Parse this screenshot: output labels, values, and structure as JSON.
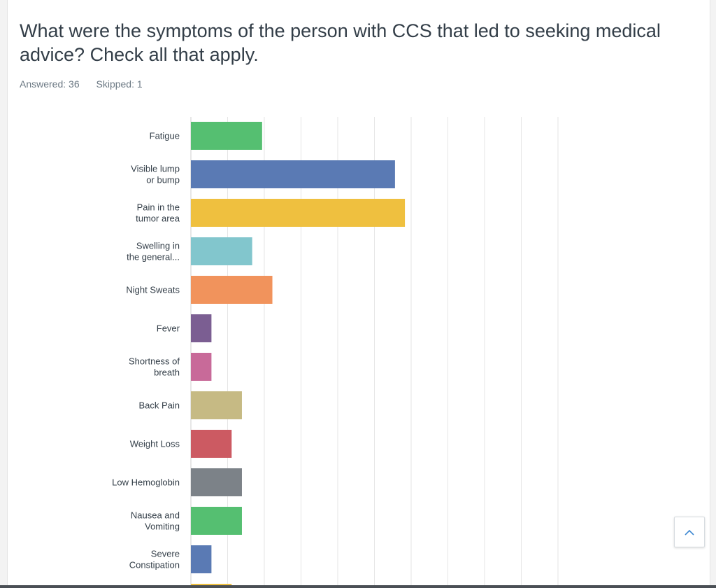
{
  "question": {
    "title": "What were the symptoms of the person with CCS that led to seeking medical advice? Check all that apply.",
    "answered": "Answered: 36",
    "skipped": "Skipped: 1"
  },
  "scroll_top": {
    "icon": "chevron-up-icon"
  },
  "colors": {
    "green": "#55bf71",
    "blue": "#5a7ab4",
    "yellow": "#efc03f",
    "teal": "#82c6cd",
    "orange": "#f1935c",
    "purple": "#7b5e92",
    "pink": "#c86a99",
    "khaki": "#c6ba84",
    "red": "#cc5a62",
    "gray": "#7c8288"
  },
  "chart_data": {
    "type": "bar",
    "orientation": "horizontal",
    "unit": "percent",
    "xlim": [
      0,
      100
    ],
    "grid": true,
    "categories": [
      [
        "Fatigue"
      ],
      [
        "Visible lump",
        "or bump"
      ],
      [
        "Pain in the",
        "tumor area"
      ],
      [
        "Swelling in",
        "the general..."
      ],
      [
        "Night Sweats"
      ],
      [
        "Fever"
      ],
      [
        "Shortness of",
        "breath"
      ],
      [
        "Back Pain"
      ],
      [
        "Weight Loss"
      ],
      [
        "Low Hemoglobin"
      ],
      [
        "Nausea and",
        "Vomiting"
      ],
      [
        "Severe",
        "Constipation"
      ],
      [
        ""
      ]
    ],
    "values": [
      19.4,
      55.6,
      58.3,
      16.7,
      22.2,
      5.6,
      5.6,
      13.9,
      11.1,
      13.9,
      13.9,
      5.6,
      11.1
    ],
    "bar_colors": [
      "#55bf71",
      "#5a7ab4",
      "#efc03f",
      "#82c6cd",
      "#f1935c",
      "#7b5e92",
      "#c86a99",
      "#c6ba84",
      "#cc5a62",
      "#7c8288",
      "#55bf71",
      "#5a7ab4",
      "#efc03f"
    ]
  }
}
